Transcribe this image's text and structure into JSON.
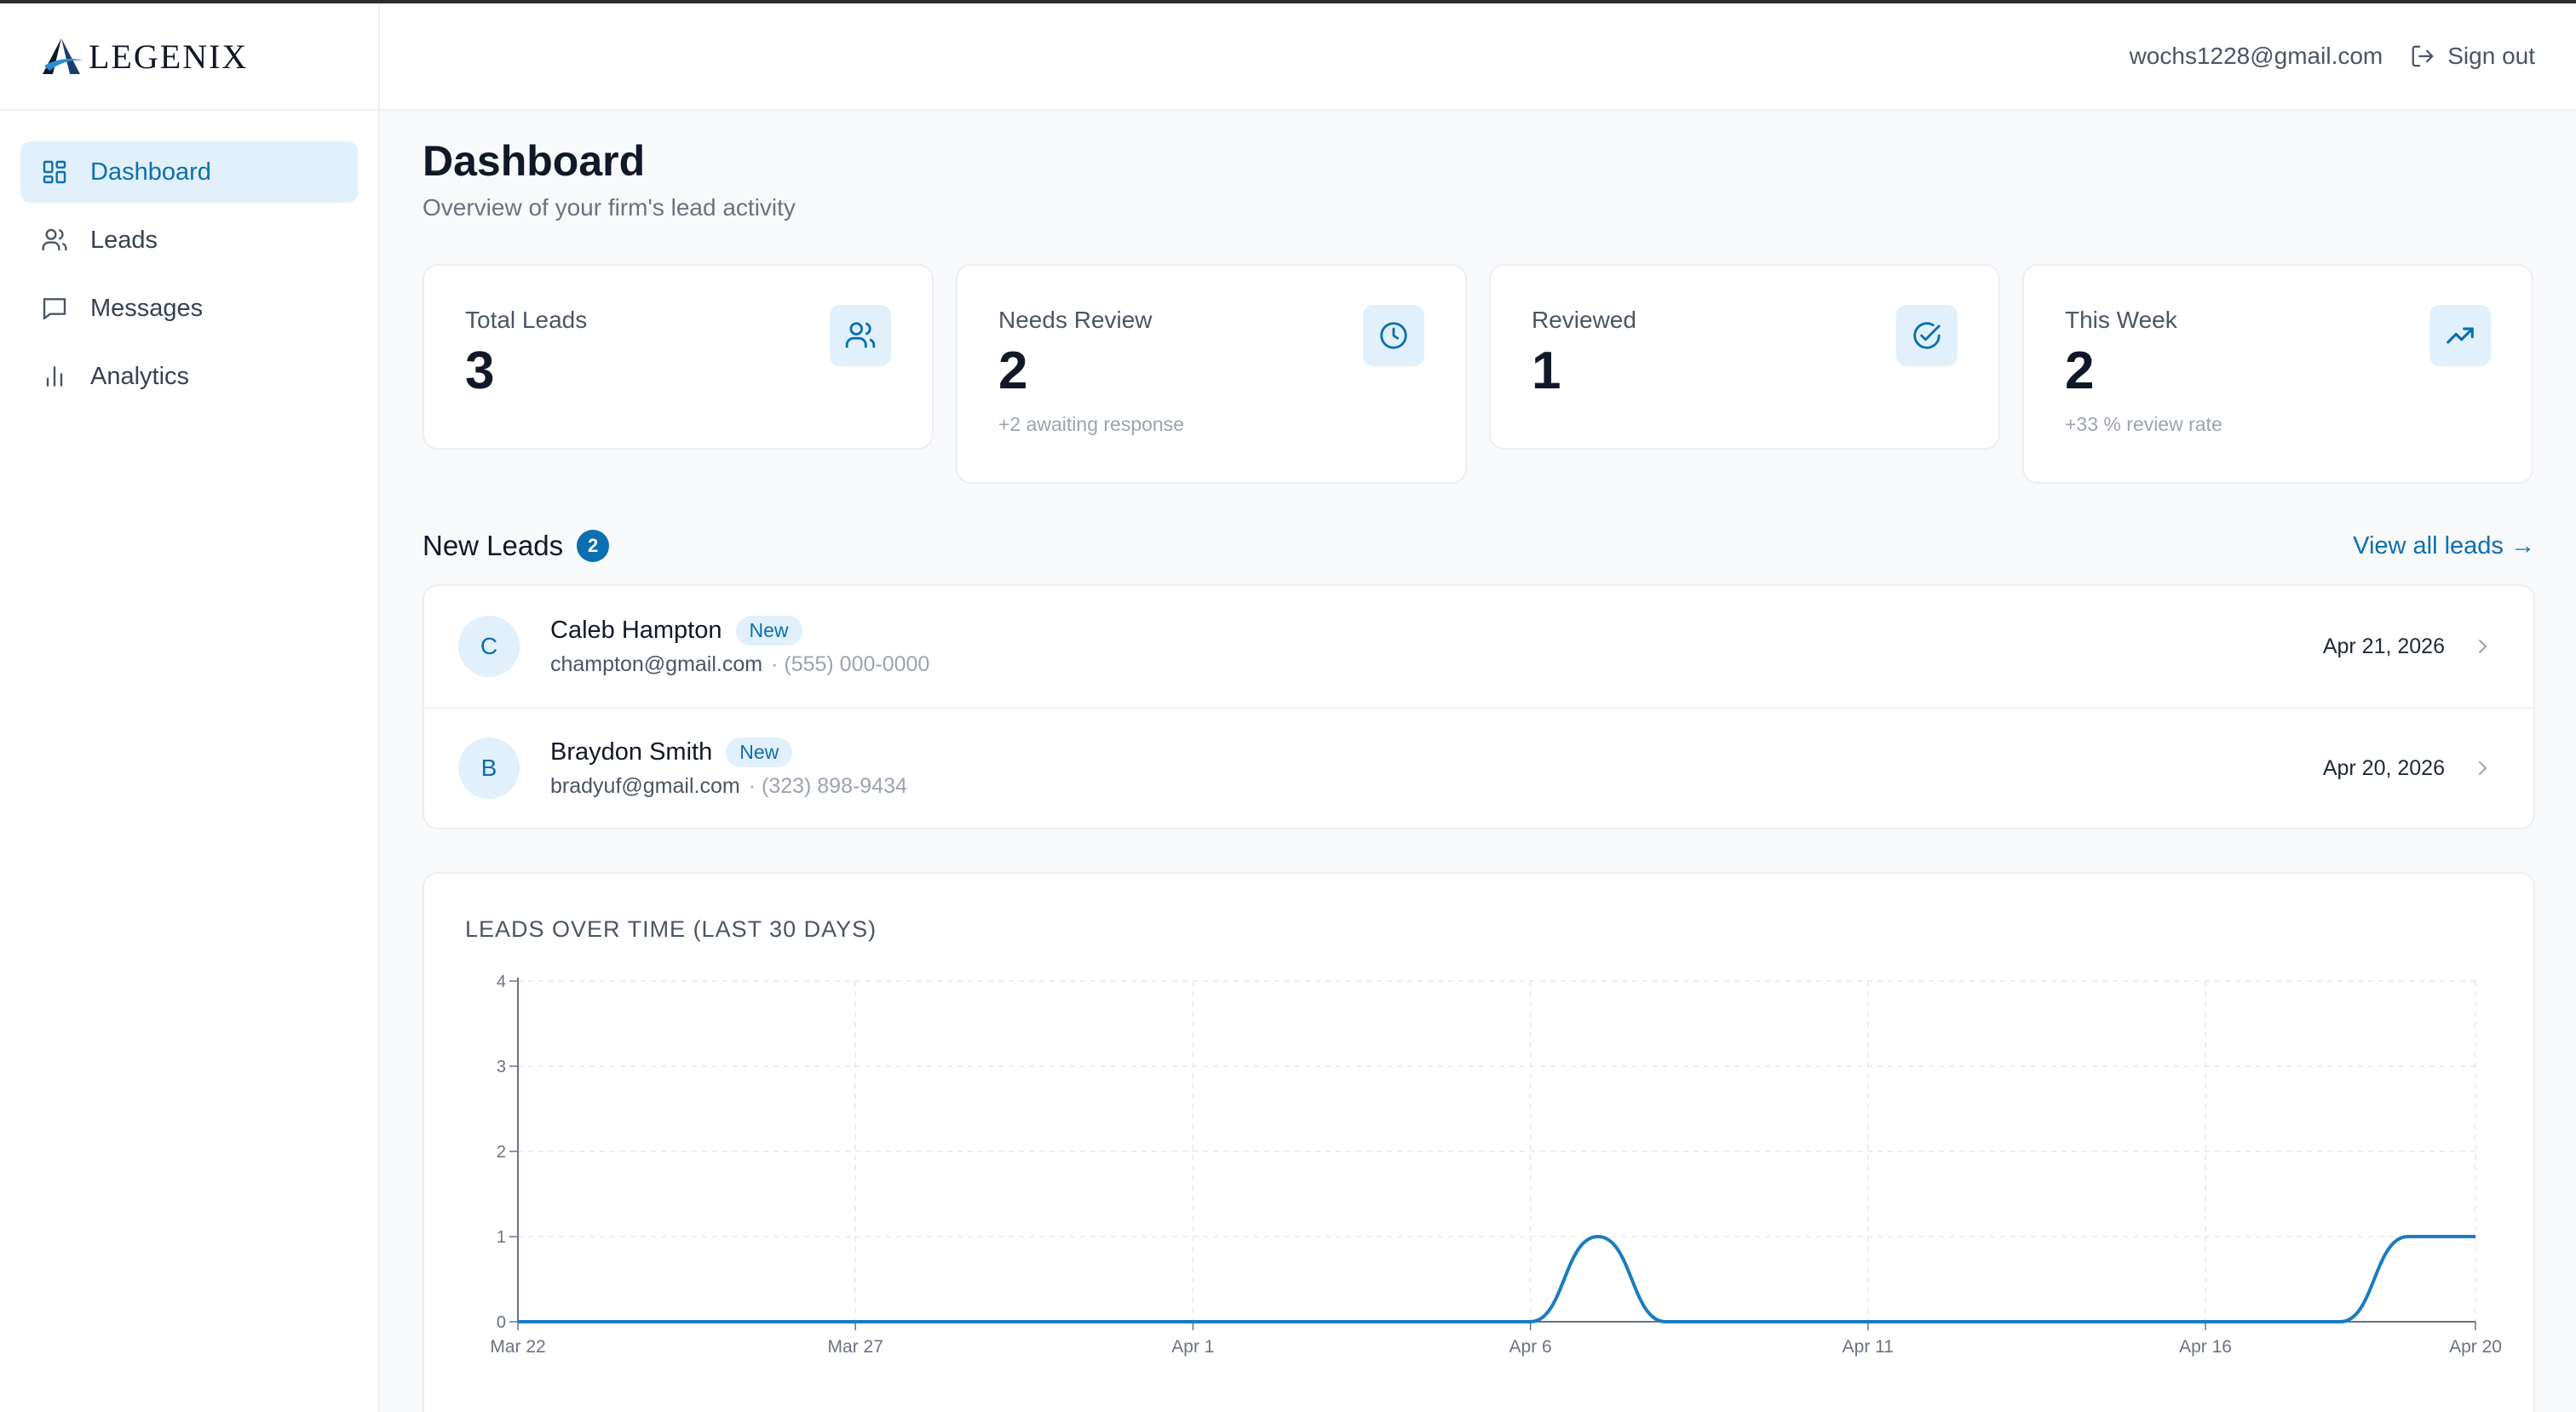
{
  "app": {
    "logo_text": "LEGENIX"
  },
  "header": {
    "user_email": "wochs1228@gmail.com",
    "signout_label": "Sign out"
  },
  "sidebar": {
    "items": [
      {
        "label": "Dashboard",
        "icon": "dashboard-icon",
        "active": true
      },
      {
        "label": "Leads",
        "icon": "users-icon",
        "active": false
      },
      {
        "label": "Messages",
        "icon": "message-icon",
        "active": false
      },
      {
        "label": "Analytics",
        "icon": "bar-chart-icon",
        "active": false
      }
    ]
  },
  "page": {
    "title": "Dashboard",
    "subtitle": "Overview of your firm's lead activity"
  },
  "stats": [
    {
      "label": "Total Leads",
      "value": "3",
      "sub": "",
      "icon": "users-icon"
    },
    {
      "label": "Needs Review",
      "value": "2",
      "sub": "+2 awaiting response",
      "icon": "clock-icon"
    },
    {
      "label": "Reviewed",
      "value": "1",
      "sub": "",
      "icon": "check-circle-icon"
    },
    {
      "label": "This Week",
      "value": "2",
      "sub": "+33 % review rate",
      "icon": "trending-up-icon"
    }
  ],
  "new_leads": {
    "title": "New Leads",
    "count": "2",
    "view_all_label": "View all leads →",
    "items": [
      {
        "initial": "C",
        "name": "Caleb Hampton",
        "badge": "New",
        "email": "champton@gmail.com",
        "phone": "· (555) 000-0000",
        "date": "Apr 21, 2026"
      },
      {
        "initial": "B",
        "name": "Braydon Smith",
        "badge": "New",
        "email": "bradyuf@gmail.com",
        "phone": "· (323) 898-9434",
        "date": "Apr 20, 2026"
      }
    ]
  },
  "colors": {
    "accent": "#0b6fb0",
    "accent_light": "#e1f0fb",
    "line": "#1a7cc1"
  },
  "chart_data": {
    "type": "line",
    "title": "LEADS OVER TIME (LAST 30 DAYS)",
    "xlabel": "",
    "ylabel": "",
    "ylim": [
      0,
      4
    ],
    "yticks": [
      "0",
      "1",
      "2",
      "3",
      "4"
    ],
    "xticks": [
      "Mar 22",
      "Mar 27",
      "Apr 1",
      "Apr 6",
      "Apr 11",
      "Apr 16",
      "Apr 20"
    ],
    "x": [
      "Mar 22",
      "Mar 23",
      "Mar 24",
      "Mar 25",
      "Mar 26",
      "Mar 27",
      "Mar 28",
      "Mar 29",
      "Mar 30",
      "Mar 31",
      "Apr 1",
      "Apr 2",
      "Apr 3",
      "Apr 4",
      "Apr 5",
      "Apr 6",
      "Apr 7",
      "Apr 8",
      "Apr 9",
      "Apr 10",
      "Apr 11",
      "Apr 12",
      "Apr 13",
      "Apr 14",
      "Apr 15",
      "Apr 16",
      "Apr 17",
      "Apr 18",
      "Apr 19",
      "Apr 20"
    ],
    "values": [
      0,
      0,
      0,
      0,
      0,
      0,
      0,
      0,
      0,
      0,
      0,
      0,
      0,
      0,
      0,
      0,
      1,
      0,
      0,
      0,
      0,
      0,
      0,
      0,
      0,
      0,
      0,
      0,
      1,
      1
    ],
    "grid": true,
    "legend": "none"
  }
}
